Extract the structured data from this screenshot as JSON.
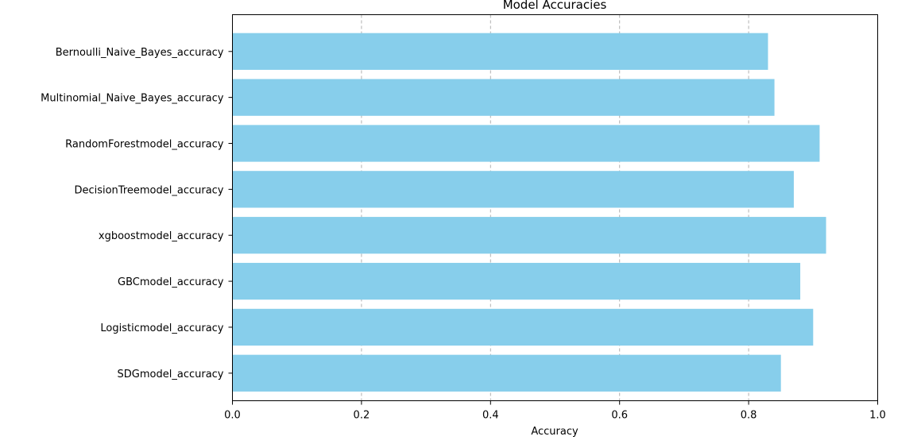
{
  "chart_data": {
    "type": "bar",
    "orientation": "horizontal",
    "title": "Model Accuracies",
    "xlabel": "Accuracy",
    "ylabel": "",
    "xlim": [
      0.0,
      1.0
    ],
    "xticks": [
      "0.0",
      "0.2",
      "0.4",
      "0.6",
      "0.8",
      "1.0"
    ],
    "xtick_values": [
      0.0,
      0.2,
      0.4,
      0.6,
      0.8,
      1.0
    ],
    "grid": "x-axis, dashed",
    "bar_color": "#87ceeb",
    "categories": [
      "SDGmodel_accuracy",
      "Logisticmodel_accuracy",
      "GBCmodel_accuracy",
      "xgboostmodel_accuracy",
      "DecisionTreemodel_accuracy",
      "RandomForestmodel_accuracy",
      "Multinomial_Naive_Bayes_accuracy",
      "Bernoulli_Naive_Bayes_accuracy"
    ],
    "values": [
      0.85,
      0.9,
      0.88,
      0.92,
      0.87,
      0.91,
      0.84,
      0.83
    ]
  }
}
